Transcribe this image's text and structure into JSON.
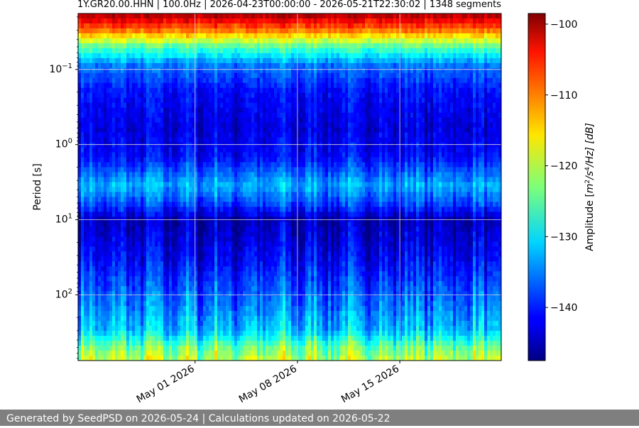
{
  "chart_data": {
    "type": "heatmap",
    "title": "1Y.GR20.00.HHN | 100.0Hz | 2026-04-23T00:00:00 - 2026-05-21T22:30:02 | 1348 segments",
    "ylabel": "Period [s]",
    "y_scale": "log",
    "y_inverted": true,
    "y_range_s": [
      0.018,
      750
    ],
    "y_ticks": [
      {
        "value": 0.1,
        "base": "10",
        "exp": "−1"
      },
      {
        "value": 1,
        "base": "10",
        "exp": "0"
      },
      {
        "value": 10,
        "base": "10",
        "exp": "1"
      },
      {
        "value": 100,
        "base": "10",
        "exp": "2"
      }
    ],
    "x_range": [
      "2026-04-23T00:00:00",
      "2026-05-21T22:30:02"
    ],
    "x_ticks": [
      {
        "date": "2026-05-01",
        "label": "May 01 2026"
      },
      {
        "date": "2026-05-08",
        "label": "May 08 2026"
      },
      {
        "date": "2026-05-15",
        "label": "May 15 2026"
      }
    ],
    "colorbar": {
      "label_prefix": "Amplitude [",
      "label_m": "m",
      "label_e1": "2",
      "label_mid": "/s",
      "label_e2": "4",
      "label_suffix": "/Hz] [dB]",
      "range_db": [
        -147.5,
        -98.5
      ],
      "ticks": [
        -100,
        -110,
        -120,
        -130,
        -140
      ],
      "tick_labels": [
        "−100",
        "−110",
        "−120",
        "−130",
        "−140"
      ],
      "colormap": "jet"
    },
    "grid": true,
    "segments": 1348,
    "amplitude_profile_db": [
      {
        "period_s": 0.018,
        "db": -100
      },
      {
        "period_s": 0.03,
        "db": -110
      },
      {
        "period_s": 0.05,
        "db": -125
      },
      {
        "period_s": 0.09,
        "db": -136
      },
      {
        "period_s": 0.2,
        "db": -141
      },
      {
        "period_s": 0.6,
        "db": -143
      },
      {
        "period_s": 1.5,
        "db": -141
      },
      {
        "period_s": 3.5,
        "db": -133
      },
      {
        "period_s": 6,
        "db": -138
      },
      {
        "period_s": 10,
        "db": -145
      },
      {
        "period_s": 30,
        "db": -142
      },
      {
        "period_s": 100,
        "db": -137
      },
      {
        "period_s": 300,
        "db": -132
      },
      {
        "period_s": 500,
        "db": -124
      },
      {
        "period_s": 750,
        "db": -120
      }
    ]
  },
  "footer": {
    "text": "Generated by SeedPSD on 2026-05-24 | Calculations updated on 2026-05-22"
  },
  "colors": {
    "footer_bg": "#7f7f7f",
    "footer_text": "#ffffff",
    "grid": "#d9d9d9"
  }
}
